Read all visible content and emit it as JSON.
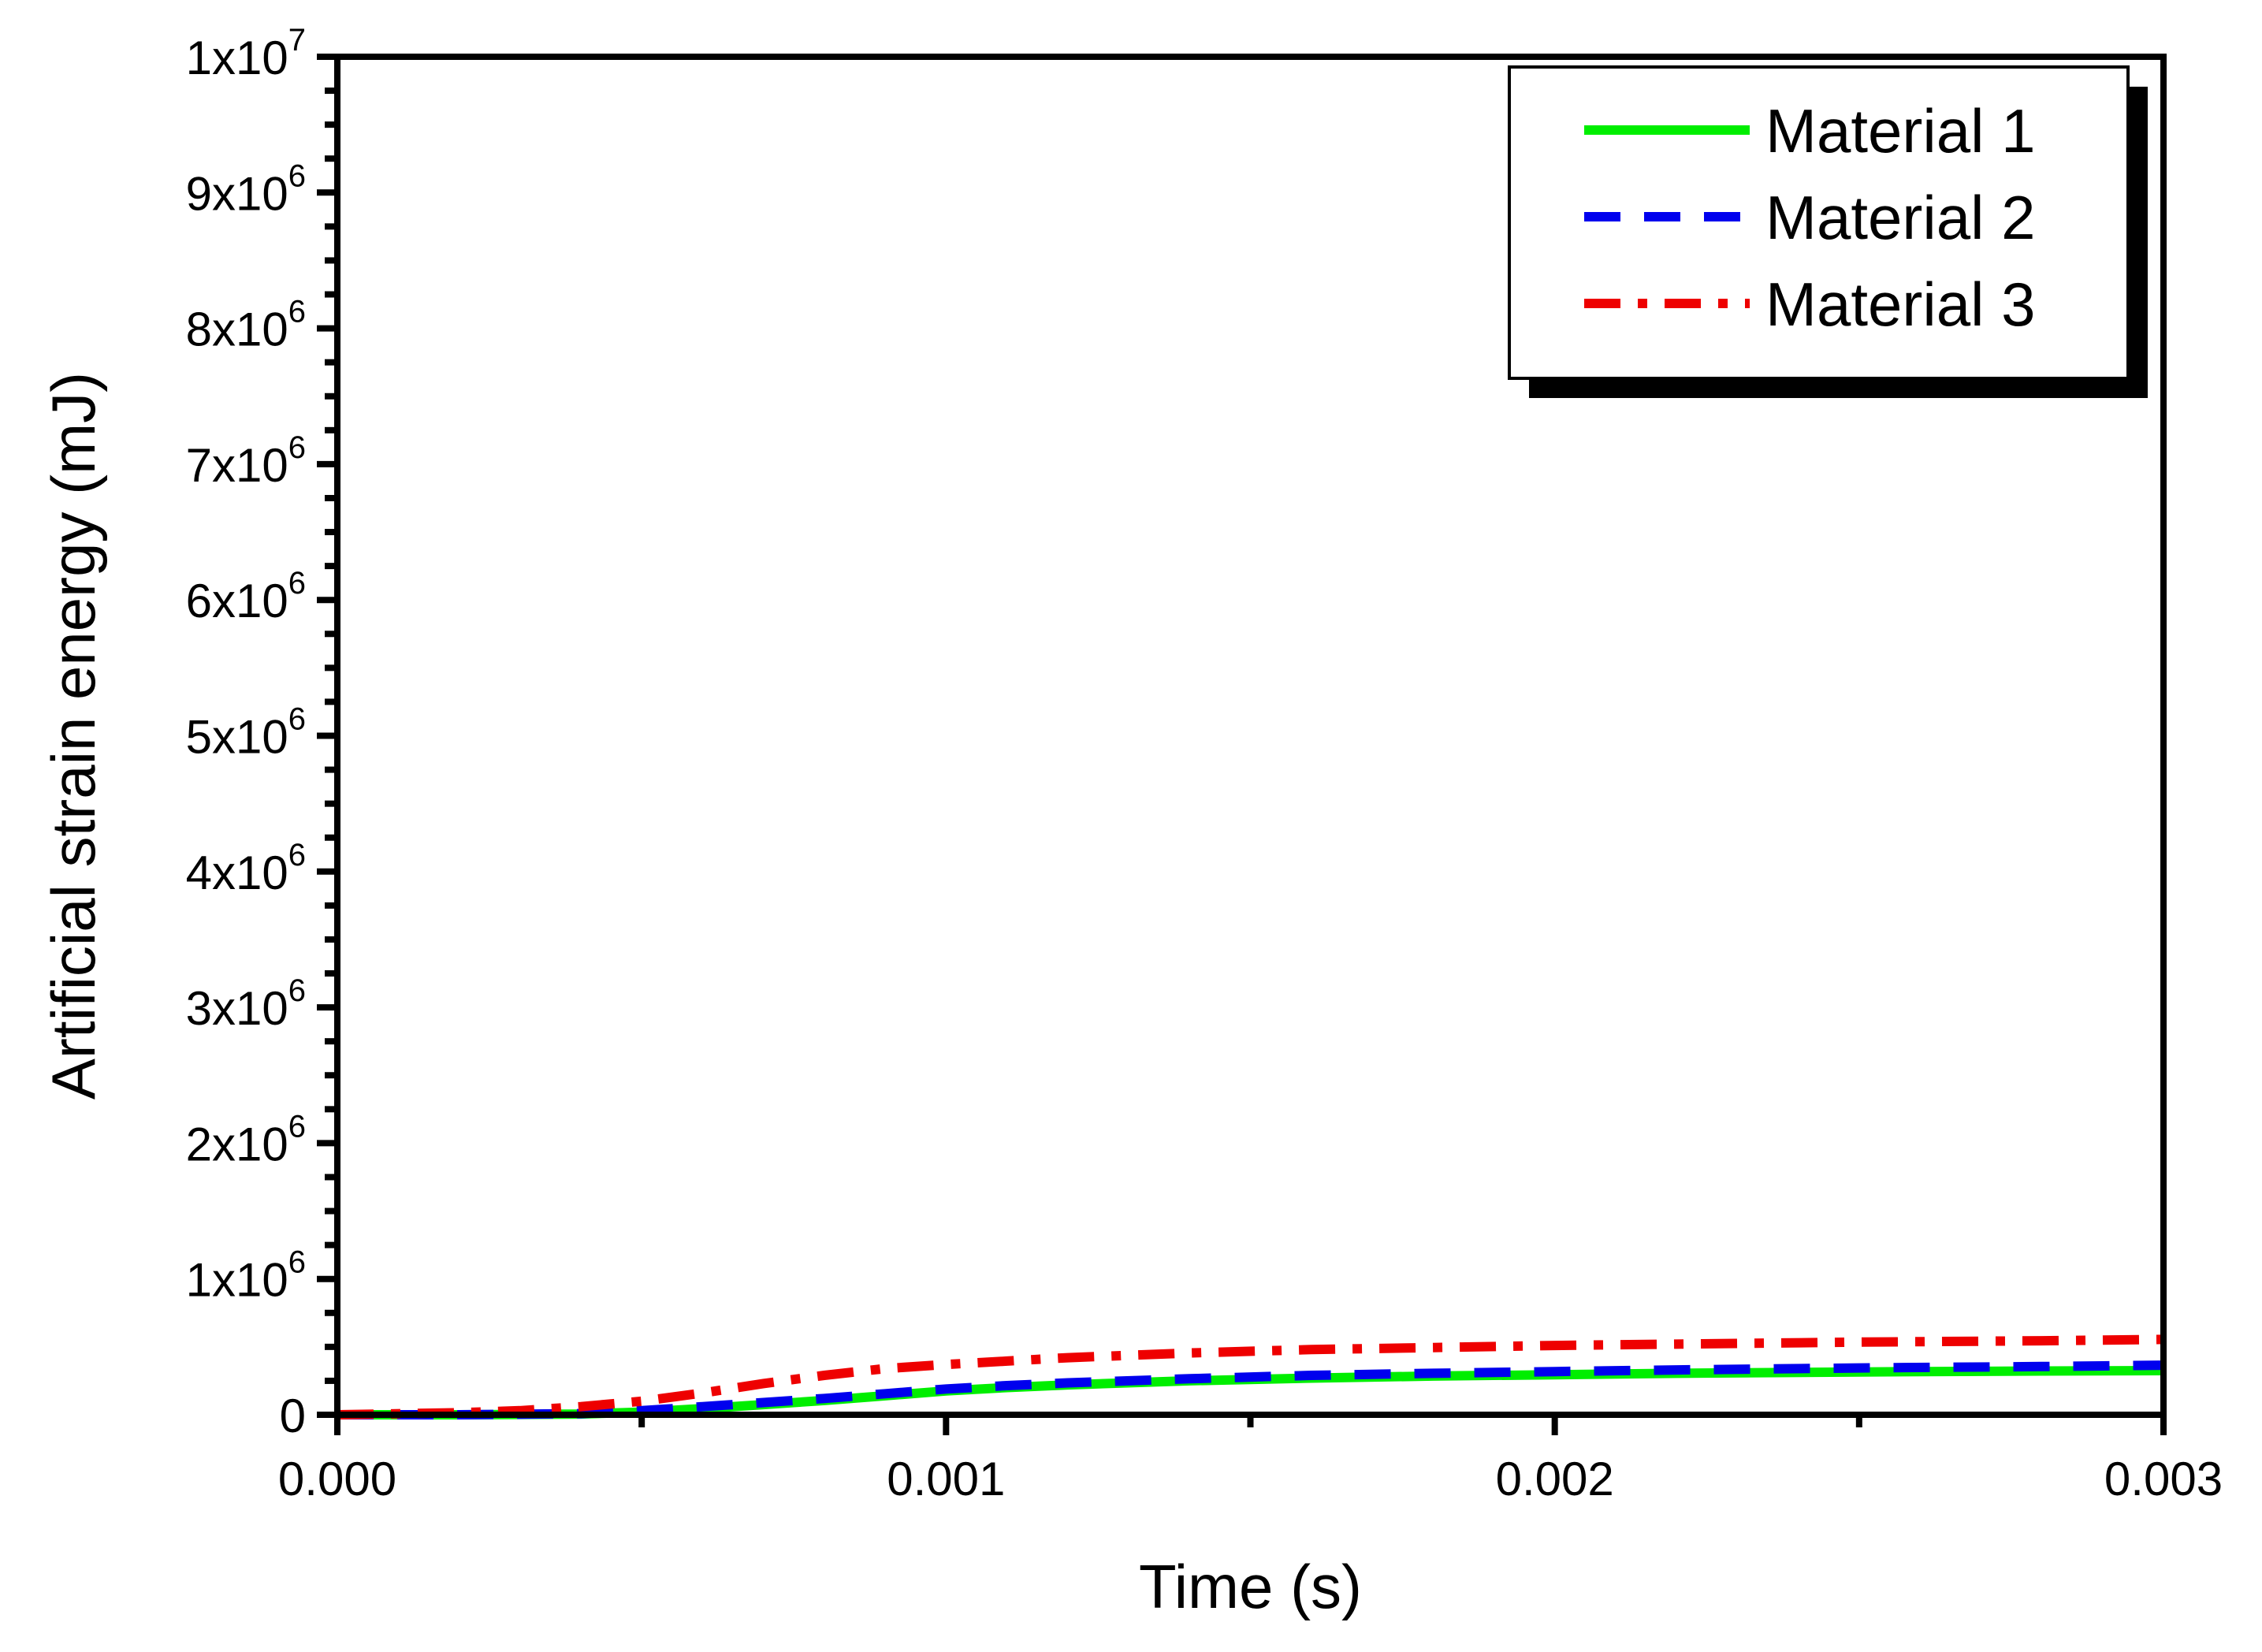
{
  "chart_data": {
    "type": "line",
    "title": "",
    "xlabel": "Time (s)",
    "ylabel": "Artificial strain energy (mJ)",
    "xlim": [
      0.0,
      0.003
    ],
    "ylim": [
      0,
      10000000
    ],
    "grid": false,
    "legend_position": "top-right",
    "x_ticks": [
      {
        "value": 0.0,
        "label": "0.000"
      },
      {
        "value": 0.001,
        "label": "0.001"
      },
      {
        "value": 0.002,
        "label": "0.002"
      },
      {
        "value": 0.003,
        "label": "0.003"
      }
    ],
    "y_ticks": [
      {
        "value": 0,
        "mantissa": "0",
        "exponent": ""
      },
      {
        "value": 1000000,
        "mantissa": "1x10",
        "exponent": "6"
      },
      {
        "value": 2000000,
        "mantissa": "2x10",
        "exponent": "6"
      },
      {
        "value": 3000000,
        "mantissa": "3x10",
        "exponent": "6"
      },
      {
        "value": 4000000,
        "mantissa": "4x10",
        "exponent": "6"
      },
      {
        "value": 5000000,
        "mantissa": "5x10",
        "exponent": "6"
      },
      {
        "value": 6000000,
        "mantissa": "6x10",
        "exponent": "6"
      },
      {
        "value": 7000000,
        "mantissa": "7x10",
        "exponent": "6"
      },
      {
        "value": 8000000,
        "mantissa": "8x10",
        "exponent": "6"
      },
      {
        "value": 9000000,
        "mantissa": "9x10",
        "exponent": "6"
      },
      {
        "value": 10000000,
        "mantissa": "1x10",
        "exponent": "7"
      }
    ],
    "series": [
      {
        "name": "Material 1",
        "color": "#00ee00",
        "style": "solid",
        "x": [
          0.0,
          0.0002,
          0.0004,
          0.0005,
          0.0006,
          0.0007,
          0.0008,
          0.0009,
          0.001,
          0.0011,
          0.0012,
          0.0014,
          0.0016,
          0.0018,
          0.002,
          0.0022,
          0.0025,
          0.0028,
          0.003
        ],
        "y": [
          0,
          0,
          5000,
          20000,
          45000,
          75000,
          105000,
          140000,
          175000,
          200000,
          220000,
          250000,
          270000,
          285000,
          295000,
          305000,
          315000,
          322000,
          325000
        ]
      },
      {
        "name": "Material 2",
        "color": "#0000ee",
        "style": "dashed",
        "x": [
          0.0,
          0.0002,
          0.0004,
          0.0005,
          0.0006,
          0.0007,
          0.0008,
          0.0009,
          0.001,
          0.0011,
          0.0012,
          0.0014,
          0.0016,
          0.0018,
          0.002,
          0.0022,
          0.0025,
          0.0028,
          0.003
        ],
        "y": [
          0,
          0,
          8000,
          30000,
          60000,
          90000,
          120000,
          155000,
          190000,
          215000,
          235000,
          265000,
          290000,
          305000,
          318000,
          330000,
          345000,
          355000,
          365000
        ]
      },
      {
        "name": "Material 3",
        "color": "#ee0000",
        "style": "dashdot",
        "x": [
          0.0,
          0.0002,
          0.0003,
          0.0004,
          0.0005,
          0.0006,
          0.0007,
          0.0008,
          0.0009,
          0.001,
          0.0011,
          0.0012,
          0.0014,
          0.0016,
          0.0018,
          0.002,
          0.0022,
          0.0025,
          0.0028,
          0.003
        ],
        "y": [
          0,
          15000,
          30000,
          60000,
          100000,
          160000,
          230000,
          290000,
          340000,
          370000,
          395000,
          420000,
          455000,
          480000,
          495000,
          510000,
          520000,
          535000,
          545000,
          555000
        ]
      }
    ]
  }
}
